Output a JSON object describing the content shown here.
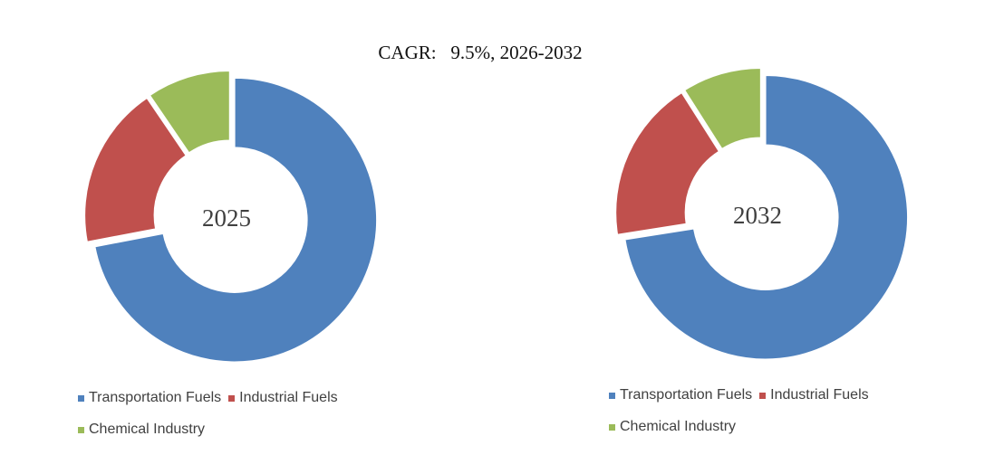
{
  "cagr": {
    "prefix": "CAGR:",
    "value": "9.5%, 2026-2032"
  },
  "chart_data": [
    {
      "type": "pie",
      "center_label": "2025",
      "series": [
        {
          "name": "Transportation Fuels",
          "value": 72,
          "color": "#4F81BD"
        },
        {
          "name": "Industrial Fuels",
          "value": 18.5,
          "color": "#C0504D"
        },
        {
          "name": "Chemical Industry",
          "value": 9.5,
          "color": "#9BBB59"
        }
      ],
      "legend_placement": "bottom"
    },
    {
      "type": "pie",
      "center_label": "2032",
      "series": [
        {
          "name": "Transportation Fuels",
          "value": 72.5,
          "color": "#4F81BD"
        },
        {
          "name": "Industrial Fuels",
          "value": 18.5,
          "color": "#C0504D"
        },
        {
          "name": "Chemical Industry",
          "value": 9,
          "color": "#9BBB59"
        }
      ],
      "legend_placement": "bottom"
    }
  ]
}
